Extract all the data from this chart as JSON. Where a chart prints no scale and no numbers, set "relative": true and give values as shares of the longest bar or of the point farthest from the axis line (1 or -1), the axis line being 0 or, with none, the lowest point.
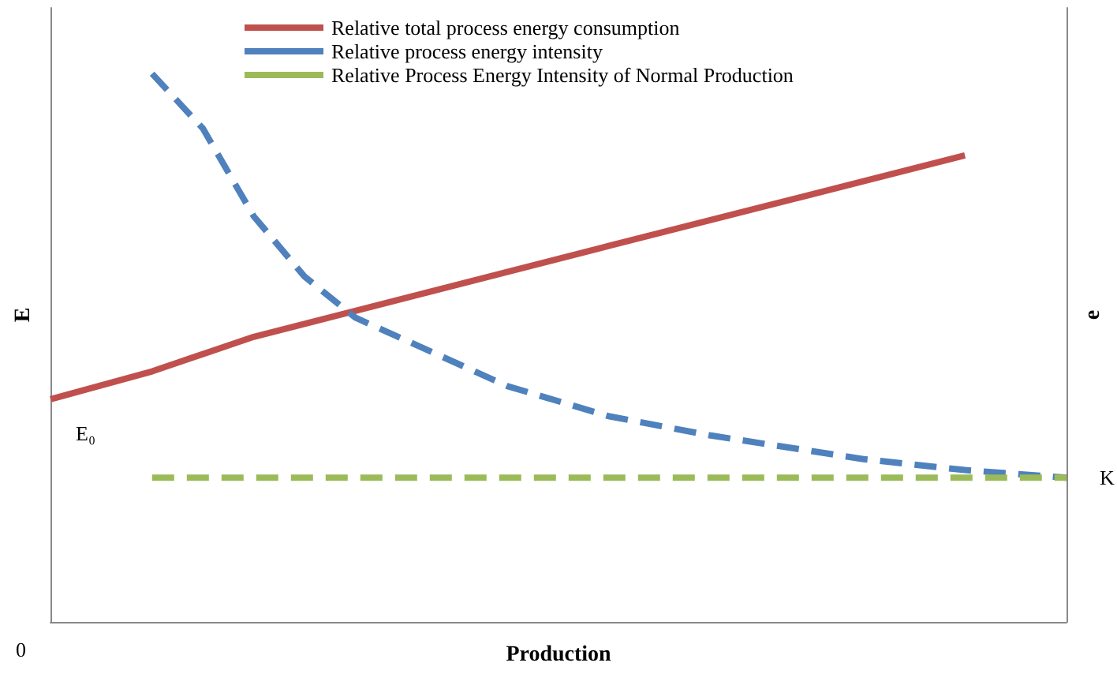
{
  "chart_data": {
    "type": "line",
    "relative": true,
    "xlabel": "Production",
    "ylabel": "E",
    "y2label": "e",
    "categories": [
      null,
      null,
      null,
      null,
      null,
      null,
      null,
      null,
      null,
      null,
      null,
      null,
      null,
      null,
      null,
      null,
      null,
      null,
      null,
      null,
      null
    ],
    "series": [
      {
        "name": "Relative total process energy consumption",
        "color": "#c0504d",
        "line_style": "solid",
        "values": [
          0.406,
          null,
          0.457,
          null,
          0.52,
          null,
          null,
          null,
          null,
          null,
          null,
          0.686,
          null,
          null,
          null,
          null,
          null,
          null,
          0.851,
          null,
          null
        ]
      },
      {
        "name": "Relative process energy intensity",
        "color": "#4f81bd",
        "line_style": "dashed",
        "values": [
          null,
          null,
          1.0,
          0.9,
          0.74,
          0.63,
          0.555,
          null,
          null,
          0.43,
          null,
          0.375,
          null,
          0.34,
          null,
          null,
          0.297,
          null,
          0.277,
          null,
          0.263
        ]
      },
      {
        "name": "Relative Process Energy Intensity of Normal Production",
        "color": "#9bbb59",
        "line_style": "dashed",
        "values": [
          null,
          null,
          0.263,
          null,
          null,
          null,
          null,
          null,
          null,
          null,
          null,
          null,
          null,
          null,
          null,
          null,
          null,
          null,
          null,
          null,
          0.263
        ]
      }
    ],
    "annotations": [
      "0",
      "E₀",
      "K"
    ],
    "grid": false,
    "legend": "top",
    "marker": "none"
  }
}
